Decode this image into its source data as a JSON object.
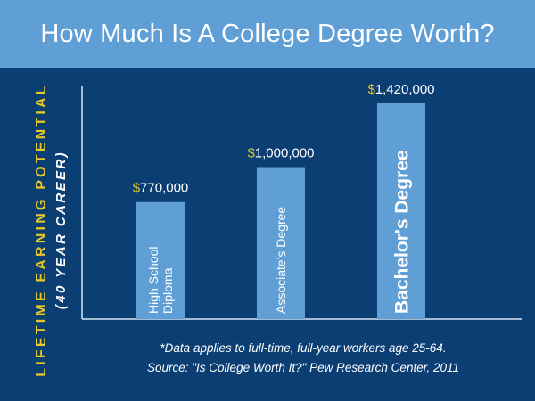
{
  "title": "How Much Is A College Degree Worth?",
  "ylabel_line1": "LIFETIME EARNING POTENTIAL",
  "ylabel_line2": "(40 YEAR CAREER)",
  "footnote_line1": "*Data applies to full-time, full-year workers age 25-64.",
  "footnote_line2": "Source: \"Is College Worth It?\" Pew Research Center, 2011",
  "colors": {
    "background": "#0b3f73",
    "header": "#5f9fd6",
    "bar": "#5f9fd6",
    "accent": "#e8c72b",
    "axis": "#d7e5f3"
  },
  "chart_data": {
    "type": "bar",
    "title": "How Much Is A College Degree Worth?",
    "ylabel": "LIFETIME EARNING POTENTIAL (40 YEAR CAREER)",
    "xlabel": "",
    "categories": [
      "High School\nDiploma",
      "Associate's Degree",
      "Bachelor's Degree"
    ],
    "values": [
      770000,
      1000000,
      1420000
    ],
    "value_labels": [
      "$770,000",
      "$1,000,000",
      "$1,420,000"
    ],
    "ylim": [
      0,
      1660000
    ],
    "grid": false,
    "legend": "none"
  }
}
